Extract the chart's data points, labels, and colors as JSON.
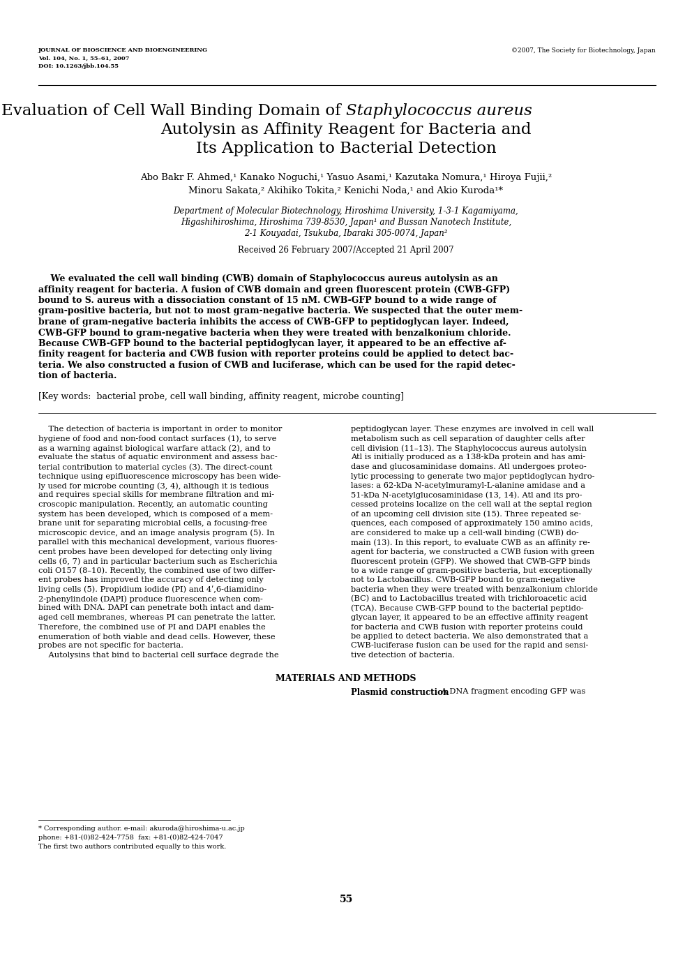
{
  "background_color": "#ffffff",
  "page_width": 9.92,
  "page_height": 14.03,
  "journal_header_left": "JOURNAL OF BIOSCIENCE AND BIOENGINEERING\nVol. 104, No. 1, 55–61, 2007\nDOI: 10.1263/jbb.104.55",
  "journal_header_right": "©2007, The Society for Biotechnology, Japan",
  "authors": "Abo Bakr F. Ahmed,¹ Kanako Noguchi,¹ Yasuo Asami,¹ Kazutaka Nomura,¹ Hiroya Fujii,²\nMinoru Sakata,² Akihiko Tokita,² Kenichi Noda,¹ and Akio Kuroda¹*",
  "affiliation_line1": "Department of Molecular Biotechnology, Hiroshima University, 1-3-1 Kagamiyama,",
  "affiliation_line2": "Higashihiroshima, Hiroshima 739-8530, Japan¹ and Bussan Nanotech Institute,",
  "affiliation_line3": "2-1 Kouyadai, Tsukuba, Ibaraki 305-0074, Japan²",
  "received": "Received 26 February 2007/Accepted 21 April 2007",
  "keywords": "[Key words:  bacterial probe, cell wall binding, affinity reagent, microbe counting]",
  "section_header": "MATERIALS AND METHODS",
  "section_subheader": "Plasmid construction",
  "section_text_start": "    A DNA fragment encoding GFP was",
  "footnote_line1": "* Corresponding author. e-mail: akuroda@hiroshima-u.ac.jp",
  "footnote_line2": "phone: +81-(0)82-424-7758  fax: +81-(0)82-424-7047",
  "footnote_line3": "The first two authors contributed equally to this work.",
  "page_number": "55",
  "abstract_lines": [
    "    We evaluated the cell wall binding (CWB) domain of Staphylococcus aureus autolysin as an",
    "affinity reagent for bacteria. A fusion of CWB domain and green fluorescent protein (CWB-GFP)",
    "bound to S. aureus with a dissociation constant of 15 nM. CWB-GFP bound to a wide range of",
    "gram-positive bacteria, but not to most gram-negative bacteria. We suspected that the outer mem-",
    "brane of gram-negative bacteria inhibits the access of CWB-GFP to peptidoglycan layer. Indeed,",
    "CWB-GFP bound to gram-negative bacteria when they were treated with benzalkonium chloride.",
    "Because CWB-GFP bound to the bacterial peptidoglycan layer, it appeared to be an effective af-",
    "finity reagent for bacteria and CWB fusion with reporter proteins could be applied to detect bac-",
    "teria. We also constructed a fusion of CWB and luciferase, which can be used for the rapid detec-",
    "tion of bacteria."
  ],
  "left_col_lines": [
    "    The detection of bacteria is important in order to monitor",
    "hygiene of food and non-food contact surfaces (1), to serve",
    "as a warning against biological warfare attack (2), and to",
    "evaluate the status of aquatic environment and assess bac-",
    "terial contribution to material cycles (3). The direct-count",
    "technique using epifluorescence microscopy has been wide-",
    "ly used for microbe counting (3, 4), although it is tedious",
    "and requires special skills for membrane filtration and mi-",
    "croscopic manipulation. Recently, an automatic counting",
    "system has been developed, which is composed of a mem-",
    "brane unit for separating microbial cells, a focusing-free",
    "microscopic device, and an image analysis program (5). In",
    "parallel with this mechanical development, various fluores-",
    "cent probes have been developed for detecting only living",
    "cells (6, 7) and in particular bacterium such as Escherichia",
    "coli O157 (8–10). Recently, the combined use of two differ-",
    "ent probes has improved the accuracy of detecting only",
    "living cells (5). Propidium iodide (PI) and 4ʹ,6-diamidino-",
    "2-phenylindole (DAPI) produce fluorescence when com-",
    "bined with DNA. DAPI can penetrate both intact and dam-",
    "aged cell membranes, whereas PI can penetrate the latter.",
    "Therefore, the combined use of PI and DAPI enables the",
    "enumeration of both viable and dead cells. However, these",
    "probes are not specific for bacteria.",
    "    Autolysins that bind to bacterial cell surface degrade the"
  ],
  "right_col_lines": [
    "peptidoglycan layer. These enzymes are involved in cell wall",
    "metabolism such as cell separation of daughter cells after",
    "cell division (11–13). The Staphylococcus aureus autolysin",
    "Atl is initially produced as a 138-kDa protein and has ami-",
    "dase and glucosaminidase domains. Atl undergoes proteo-",
    "lytic processing to generate two major peptidoglycan hydro-",
    "lases: a 62-kDa N-acetylmuramyl-L-alanine amidase and a",
    "51-kDa N-acetylglucosaminidase (13, 14). Atl and its pro-",
    "cessed proteins localize on the cell wall at the septal region",
    "of an upcoming cell division site (15). Three repeated se-",
    "quences, each composed of approximately 150 amino acids,",
    "are considered to make up a cell-wall binding (CWB) do-",
    "main (13). In this report, to evaluate CWB as an affinity re-",
    "agent for bacteria, we constructed a CWB fusion with green",
    "fluorescent protein (GFP). We showed that CWB-GFP binds",
    "to a wide range of gram-positive bacteria, but exceptionally",
    "not to Lactobacillus. CWB-GFP bound to gram-negative",
    "bacteria when they were treated with benzalkonium chloride",
    "(BC) and to Lactobacillus treated with trichloroacetic acid",
    "(TCA). Because CWB-GFP bound to the bacterial peptido-",
    "glycan layer, it appeared to be an effective affinity reagent",
    "for bacteria and CWB fusion with reporter proteins could",
    "be applied to detect bacteria. We also demonstrated that a",
    "CWB-luciferase fusion can be used for the rapid and sensi-",
    "tive detection of bacteria."
  ]
}
